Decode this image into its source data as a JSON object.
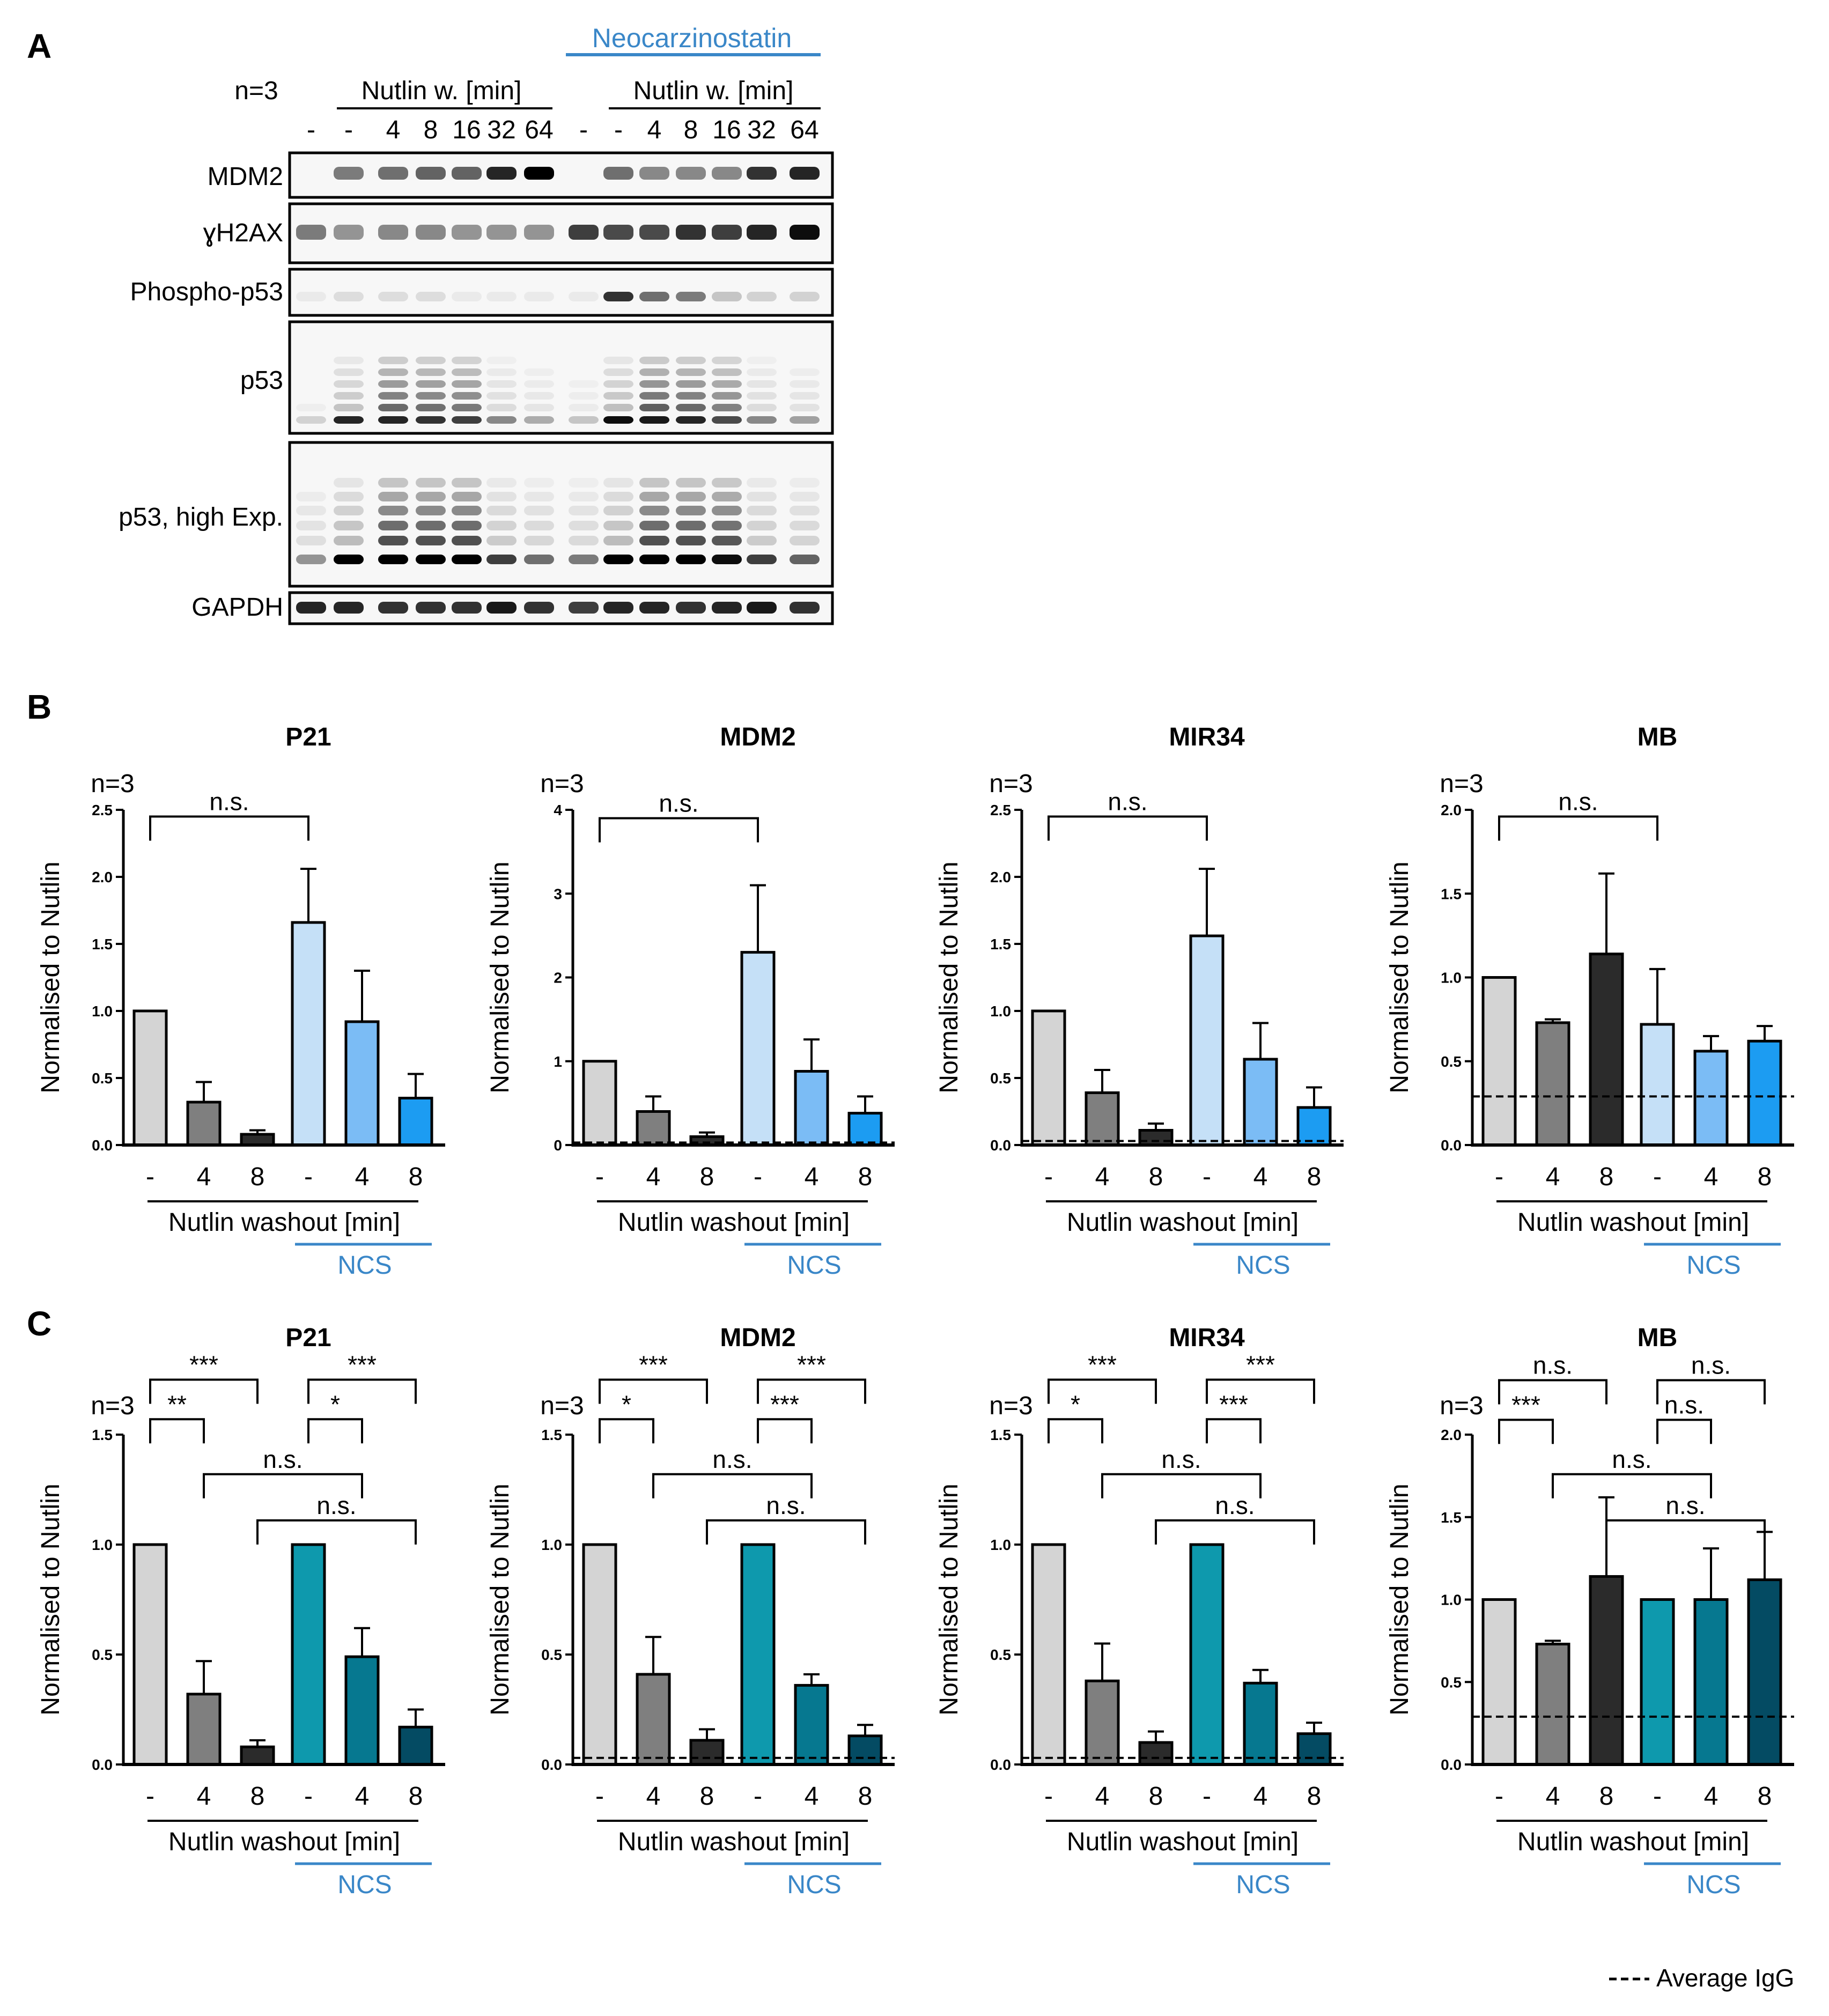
{
  "panel_labels": {
    "a": "A",
    "b": "B",
    "c": "C"
  },
  "blot": {
    "n_label": "n=3",
    "neocarzinostatin_label": "Neocarzinostatin",
    "nutlin_header_1": "Nutlin w. [min]",
    "nutlin_header_2": "Nutlin w. [min]",
    "lane_labels": [
      "-",
      "-",
      "4",
      "8",
      "16",
      "32",
      "64",
      "-",
      "-",
      "4",
      "8",
      "16",
      "32",
      "64"
    ],
    "rows": [
      {
        "label": "MDM2",
        "intensity": [
          0.0,
          0.5,
          0.55,
          0.6,
          0.6,
          0.85,
          1.0,
          0.0,
          0.55,
          0.45,
          0.45,
          0.45,
          0.8,
          0.85
        ]
      },
      {
        "label": "ɣH2AX",
        "intensity": [
          0.5,
          0.4,
          0.45,
          0.45,
          0.4,
          0.4,
          0.4,
          0.75,
          0.7,
          0.7,
          0.8,
          0.75,
          0.85,
          0.95
        ]
      },
      {
        "label": "Phospho-p53",
        "intensity": [
          0.05,
          0.1,
          0.1,
          0.1,
          0.05,
          0.05,
          0.05,
          0.05,
          0.8,
          0.55,
          0.5,
          0.2,
          0.15,
          0.15
        ]
      },
      {
        "label": "p53",
        "intensity": [
          0.15,
          0.85,
          0.85,
          0.8,
          0.75,
          0.45,
          0.3,
          0.2,
          0.95,
          0.9,
          0.85,
          0.7,
          0.45,
          0.35
        ]
      },
      {
        "label": "p53, high Exp.",
        "intensity": [
          0.4,
          1.0,
          1.0,
          1.0,
          1.0,
          0.75,
          0.55,
          0.5,
          1.0,
          1.0,
          1.0,
          0.95,
          0.75,
          0.6
        ]
      },
      {
        "label": "GAPDH",
        "intensity": [
          0.85,
          0.85,
          0.8,
          0.8,
          0.8,
          0.9,
          0.8,
          0.75,
          0.85,
          0.85,
          0.8,
          0.85,
          0.9,
          0.8
        ]
      }
    ]
  },
  "common": {
    "n_label": "n=3",
    "ylabel": "Normalised to Nutlin",
    "xlabel": "Nutlin washout [min]",
    "ncs_label": "NCS",
    "categories": [
      "-",
      "4",
      "8",
      "-",
      "4",
      "8"
    ],
    "legend_label": "Average IgG"
  },
  "colors": {
    "b_bars": [
      "#d4d4d4",
      "#7f7f7f",
      "#2b2b2b",
      "#c5e0f7",
      "#7bbcf5",
      "#1c9cf2"
    ],
    "c_bars": [
      "#d4d4d4",
      "#7f7f7f",
      "#2b2b2b",
      "#0e99ad",
      "#067890",
      "#044b63"
    ],
    "blue_text": "#3a87c8"
  },
  "chart_data": [
    {
      "type": "bar",
      "panel": "B",
      "title": "P21",
      "ylim": [
        0,
        2.5
      ],
      "ticks": [
        "0.0",
        "0.5",
        "1.0",
        "1.5",
        "2.0",
        "2.5"
      ],
      "tick_values": [
        0,
        0.5,
        1.0,
        1.5,
        2.0,
        2.5
      ],
      "values": [
        1.0,
        0.32,
        0.08,
        1.66,
        0.92,
        0.35
      ],
      "errors": [
        0,
        0.15,
        0.03,
        0.4,
        0.38,
        0.18
      ],
      "igg": null,
      "brackets": [
        {
          "from": 0,
          "to": 3,
          "y": 2.45,
          "label": "n.s."
        }
      ]
    },
    {
      "type": "bar",
      "panel": "B",
      "title": "MDM2",
      "ylim": [
        0,
        4
      ],
      "ticks": [
        "0",
        "1",
        "2",
        "3",
        "4"
      ],
      "tick_values": [
        0,
        1,
        2,
        3,
        4
      ],
      "values": [
        1.0,
        0.4,
        0.1,
        2.3,
        0.88,
        0.38
      ],
      "errors": [
        0,
        0.18,
        0.05,
        0.8,
        0.38,
        0.2
      ],
      "igg": 0.03,
      "brackets": [
        {
          "from": 0,
          "to": 3,
          "y": 3.9,
          "label": "n.s."
        }
      ]
    },
    {
      "type": "bar",
      "panel": "B",
      "title": "MIR34",
      "ylim": [
        0,
        2.5
      ],
      "ticks": [
        "0.0",
        "0.5",
        "1.0",
        "1.5",
        "2.0",
        "2.5"
      ],
      "tick_values": [
        0,
        0.5,
        1.0,
        1.5,
        2.0,
        2.5
      ],
      "values": [
        1.0,
        0.39,
        0.11,
        1.56,
        0.64,
        0.28
      ],
      "errors": [
        0,
        0.17,
        0.05,
        0.5,
        0.27,
        0.15
      ],
      "igg": 0.03,
      "brackets": [
        {
          "from": 0,
          "to": 3,
          "y": 2.45,
          "label": "n.s."
        }
      ]
    },
    {
      "type": "bar",
      "panel": "B",
      "title": "MB",
      "ylim": [
        0,
        2.0
      ],
      "ticks": [
        "0.0",
        "0.5",
        "1.0",
        "1.5",
        "2.0"
      ],
      "tick_values": [
        0,
        0.5,
        1.0,
        1.5,
        2.0
      ],
      "values": [
        1.0,
        0.73,
        1.14,
        0.72,
        0.56,
        0.62
      ],
      "errors": [
        0,
        0.02,
        0.48,
        0.33,
        0.09,
        0.09
      ],
      "igg": 0.29,
      "brackets": [
        {
          "from": 0,
          "to": 3,
          "y": 1.96,
          "label": "n.s."
        }
      ]
    },
    {
      "type": "bar",
      "panel": "C",
      "title": "P21",
      "ylim": [
        0,
        1.5
      ],
      "ticks": [
        "0.0",
        "0.5",
        "1.0",
        "1.5"
      ],
      "tick_values": [
        0,
        0.5,
        1.0,
        1.5
      ],
      "values": [
        1.0,
        0.32,
        0.08,
        1.0,
        0.49,
        0.17
      ],
      "errors": [
        0,
        0.15,
        0.03,
        0,
        0.13,
        0.08
      ],
      "igg": null,
      "brackets": [
        {
          "from": 0,
          "to": 2,
          "y": 1.75,
          "label": "***"
        },
        {
          "from": 3,
          "to": 5,
          "y": 1.75,
          "label": "***"
        },
        {
          "from": 0,
          "to": 1,
          "y": 1.57,
          "label": "**"
        },
        {
          "from": 3,
          "to": 4,
          "y": 1.57,
          "label": "*"
        },
        {
          "from": 1,
          "to": 4,
          "y": 1.32,
          "label": "n.s."
        },
        {
          "from": 2,
          "to": 5,
          "y": 1.11,
          "label": "n.s."
        }
      ]
    },
    {
      "type": "bar",
      "panel": "C",
      "title": "MDM2",
      "ylim": [
        0,
        1.5
      ],
      "ticks": [
        "0.0",
        "0.5",
        "1.0",
        "1.5"
      ],
      "tick_values": [
        0,
        0.5,
        1.0,
        1.5
      ],
      "values": [
        1.0,
        0.41,
        0.11,
        1.0,
        0.36,
        0.13
      ],
      "errors": [
        0,
        0.17,
        0.05,
        0,
        0.05,
        0.05
      ],
      "igg": 0.03,
      "brackets": [
        {
          "from": 0,
          "to": 2,
          "y": 1.75,
          "label": "***"
        },
        {
          "from": 3,
          "to": 5,
          "y": 1.75,
          "label": "***"
        },
        {
          "from": 0,
          "to": 1,
          "y": 1.57,
          "label": "*"
        },
        {
          "from": 3,
          "to": 4,
          "y": 1.57,
          "label": "***"
        },
        {
          "from": 1,
          "to": 4,
          "y": 1.32,
          "label": "n.s."
        },
        {
          "from": 2,
          "to": 5,
          "y": 1.11,
          "label": "n.s."
        }
      ]
    },
    {
      "type": "bar",
      "panel": "C",
      "title": "MIR34",
      "ylim": [
        0,
        1.5
      ],
      "ticks": [
        "0.0",
        "0.5",
        "1.0",
        "1.5"
      ],
      "tick_values": [
        0,
        0.5,
        1.0,
        1.5
      ],
      "values": [
        1.0,
        0.38,
        0.1,
        1.0,
        0.37,
        0.14
      ],
      "errors": [
        0,
        0.17,
        0.05,
        0,
        0.06,
        0.05
      ],
      "igg": 0.03,
      "brackets": [
        {
          "from": 0,
          "to": 2,
          "y": 1.75,
          "label": "***"
        },
        {
          "from": 3,
          "to": 5,
          "y": 1.75,
          "label": "***"
        },
        {
          "from": 0,
          "to": 1,
          "y": 1.57,
          "label": "*"
        },
        {
          "from": 3,
          "to": 4,
          "y": 1.57,
          "label": "***"
        },
        {
          "from": 1,
          "to": 4,
          "y": 1.32,
          "label": "n.s."
        },
        {
          "from": 2,
          "to": 5,
          "y": 1.11,
          "label": "n.s."
        }
      ]
    },
    {
      "type": "bar",
      "panel": "C",
      "title": "MB",
      "ylim": [
        0,
        2.0
      ],
      "ticks": [
        "0.0",
        "0.5",
        "1.0",
        "1.5",
        "2.0"
      ],
      "tick_values": [
        0,
        0.5,
        1.0,
        1.5,
        2.0
      ],
      "values": [
        1.0,
        0.73,
        1.14,
        1.0,
        1.0,
        1.12
      ],
      "errors": [
        0,
        0.02,
        0.48,
        0,
        0.31,
        0.29
      ],
      "igg": 0.29,
      "brackets": [
        {
          "from": 0,
          "to": 2,
          "y": 2.33,
          "label": "n.s."
        },
        {
          "from": 3,
          "to": 5,
          "y": 2.33,
          "label": "n.s."
        },
        {
          "from": 0,
          "to": 1,
          "y": 2.09,
          "label": "***"
        },
        {
          "from": 3,
          "to": 4,
          "y": 2.09,
          "label": "n.s."
        },
        {
          "from": 1,
          "to": 4,
          "y": 1.76,
          "label": "n.s."
        },
        {
          "from": 2,
          "to": 5,
          "y": 1.48,
          "label": "n.s."
        }
      ]
    }
  ]
}
